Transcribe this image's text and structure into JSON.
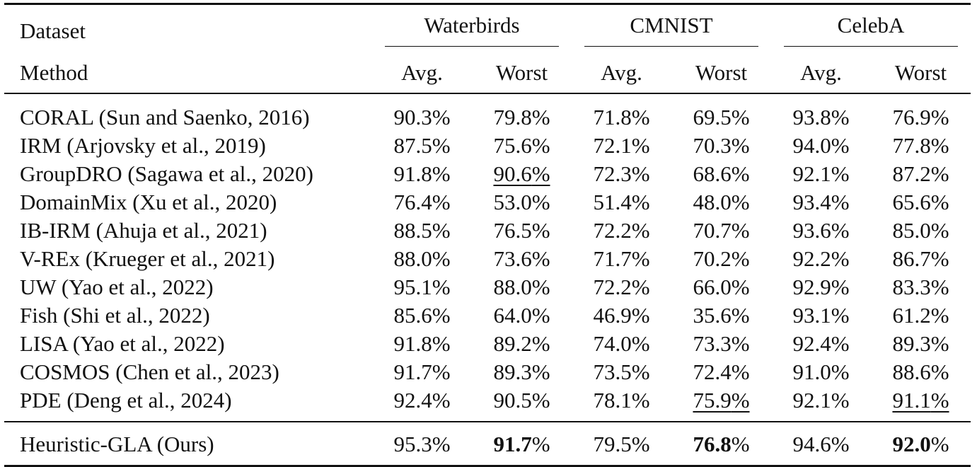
{
  "table": {
    "header": {
      "dataset_label": "Dataset",
      "method_label": "Method",
      "groups": [
        "Waterbirds",
        "CMNIST",
        "CelebA"
      ],
      "subcolumns": [
        "Avg.",
        "Worst",
        "Avg.",
        "Worst",
        "Avg.",
        "Worst"
      ]
    },
    "percent_sign": "%",
    "rows": [
      {
        "method": "CORAL (Sun and Saenko, 2016)",
        "values": [
          "90.3",
          "79.8",
          "71.8",
          "69.5",
          "93.8",
          "76.9"
        ]
      },
      {
        "method": "IRM (Arjovsky et al., 2019)",
        "values": [
          "87.5",
          "75.6",
          "72.1",
          "70.3",
          "94.0",
          "77.8"
        ]
      },
      {
        "method": "GroupDRO (Sagawa et al., 2020)",
        "values": [
          "91.8",
          "90.6",
          "72.3",
          "68.6",
          "92.1",
          "87.2"
        ]
      },
      {
        "method": "DomainMix (Xu et al., 2020)",
        "values": [
          "76.4",
          "53.0",
          "51.4",
          "48.0",
          "93.4",
          "65.6"
        ]
      },
      {
        "method": "IB-IRM (Ahuja et al., 2021)",
        "values": [
          "88.5",
          "76.5",
          "72.2",
          "70.7",
          "93.6",
          "85.0"
        ]
      },
      {
        "method": "V-REx (Krueger et al., 2021)",
        "values": [
          "88.0",
          "73.6",
          "71.7",
          "70.2",
          "92.2",
          "86.7"
        ]
      },
      {
        "method": "UW (Yao et al., 2022)",
        "values": [
          "95.1",
          "88.0",
          "72.2",
          "66.0",
          "92.9",
          "83.3"
        ]
      },
      {
        "method": "Fish (Shi et al., 2022)",
        "values": [
          "85.6",
          "64.0",
          "46.9",
          "35.6",
          "93.1",
          "61.2"
        ]
      },
      {
        "method": "LISA (Yao et al., 2022)",
        "values": [
          "91.8",
          "89.2",
          "74.0",
          "73.3",
          "92.4",
          "89.3"
        ]
      },
      {
        "method": "COSMOS (Chen et al., 2023)",
        "values": [
          "91.7",
          "89.3",
          "73.5",
          "72.4",
          "91.0",
          "88.6"
        ]
      },
      {
        "method": "PDE (Deng et al., 2024)",
        "values": [
          "92.4",
          "90.5",
          "78.1",
          "75.9",
          "92.1",
          "91.1"
        ]
      }
    ],
    "ours": {
      "method": "Heuristic-GLA (Ours)",
      "values": [
        "95.3",
        "91.7",
        "79.5",
        "76.8",
        "94.6",
        "92.0"
      ]
    },
    "underlined": [
      [
        2,
        1
      ],
      [
        10,
        3
      ],
      [
        10,
        5
      ]
    ],
    "bold_ours_columns": [
      1,
      3,
      5
    ]
  }
}
